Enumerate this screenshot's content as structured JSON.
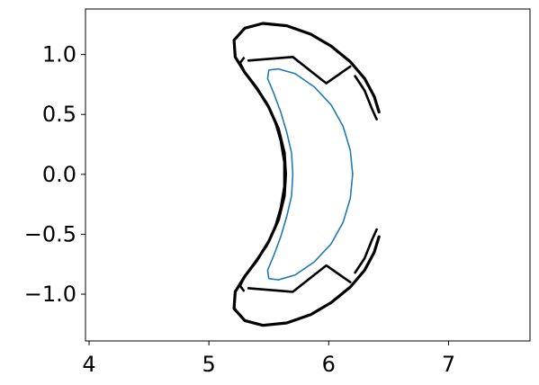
{
  "chart_data": {
    "type": "line",
    "title": "",
    "xlabel": "",
    "ylabel": "",
    "xlim": [
      3.97,
      7.68
    ],
    "ylim": [
      -1.39,
      1.38
    ],
    "grid": false,
    "x_ticks": [
      4,
      5,
      6,
      7
    ],
    "x_tick_labels": [
      "4",
      "5",
      "6",
      "7"
    ],
    "y_ticks": [
      -1.0,
      -0.5,
      0.0,
      0.5,
      1.0
    ],
    "y_tick_labels": [
      "−1.0",
      "−0.5",
      "0.0",
      "0.5",
      "1.0"
    ],
    "series": [
      {
        "kind": "outer-wall",
        "color": "#000000",
        "points": [
          [
            6.42,
            0.52
          ],
          [
            6.38,
            0.65
          ],
          [
            6.3,
            0.8
          ],
          [
            6.18,
            0.94
          ],
          [
            6.02,
            1.07
          ],
          [
            5.85,
            1.17
          ],
          [
            5.65,
            1.24
          ],
          [
            5.45,
            1.26
          ],
          [
            5.3,
            1.22
          ],
          [
            5.21,
            1.12
          ],
          [
            5.22,
            0.98
          ],
          [
            5.3,
            0.85
          ],
          [
            5.4,
            0.72
          ],
          [
            5.5,
            0.56
          ],
          [
            5.58,
            0.38
          ],
          [
            5.63,
            0.18
          ],
          [
            5.64,
            0.0
          ],
          [
            5.63,
            -0.18
          ],
          [
            5.58,
            -0.38
          ],
          [
            5.5,
            -0.56
          ],
          [
            5.4,
            -0.72
          ],
          [
            5.3,
            -0.85
          ],
          [
            5.22,
            -0.98
          ],
          [
            5.21,
            -1.12
          ],
          [
            5.3,
            -1.22
          ],
          [
            5.45,
            -1.26
          ],
          [
            5.65,
            -1.24
          ],
          [
            5.85,
            -1.17
          ],
          [
            6.02,
            -1.07
          ],
          [
            6.18,
            -0.94
          ],
          [
            6.3,
            -0.8
          ],
          [
            6.38,
            -0.65
          ],
          [
            6.42,
            -0.52
          ]
        ]
      },
      {
        "kind": "inner-wall-left",
        "color": "#000000",
        "points": [
          [
            5.29,
            0.97
          ],
          [
            5.26,
            0.93
          ],
          [
            5.3,
            0.85
          ],
          [
            5.38,
            0.74
          ],
          [
            5.48,
            0.6
          ],
          [
            5.55,
            0.45
          ],
          [
            5.6,
            0.28
          ],
          [
            5.63,
            0.1
          ],
          [
            5.63,
            0.0
          ],
          [
            5.63,
            -0.1
          ],
          [
            5.6,
            -0.28
          ],
          [
            5.55,
            -0.45
          ],
          [
            5.48,
            -0.6
          ],
          [
            5.38,
            -0.74
          ],
          [
            5.3,
            -0.85
          ],
          [
            5.26,
            -0.93
          ],
          [
            5.29,
            -0.97
          ]
        ]
      },
      {
        "kind": "upper-baffle",
        "color": "#000000",
        "points": [
          [
            5.33,
            0.95
          ],
          [
            5.7,
            0.98
          ],
          [
            5.98,
            0.76
          ],
          [
            6.18,
            0.9
          ]
        ]
      },
      {
        "kind": "lower-baffle",
        "color": "#000000",
        "points": [
          [
            5.33,
            -0.95
          ],
          [
            5.7,
            -0.98
          ],
          [
            5.98,
            -0.76
          ],
          [
            6.18,
            -0.9
          ]
        ]
      },
      {
        "kind": "upper-right-plate",
        "color": "#000000",
        "points": [
          [
            6.22,
            0.82
          ],
          [
            6.3,
            0.7
          ],
          [
            6.36,
            0.55
          ],
          [
            6.4,
            0.46
          ]
        ]
      },
      {
        "kind": "lower-right-plate",
        "color": "#000000",
        "points": [
          [
            6.22,
            -0.82
          ],
          [
            6.3,
            -0.7
          ],
          [
            6.36,
            -0.55
          ],
          [
            6.4,
            -0.46
          ]
        ]
      },
      {
        "kind": "plasma-boundary",
        "color": "#1f77b4",
        "points": [
          [
            6.2,
            0.0
          ],
          [
            6.18,
            0.2
          ],
          [
            6.12,
            0.4
          ],
          [
            6.02,
            0.58
          ],
          [
            5.88,
            0.73
          ],
          [
            5.72,
            0.84
          ],
          [
            5.58,
            0.88
          ],
          [
            5.5,
            0.87
          ],
          [
            5.49,
            0.8
          ],
          [
            5.54,
            0.68
          ],
          [
            5.6,
            0.52
          ],
          [
            5.65,
            0.35
          ],
          [
            5.69,
            0.18
          ],
          [
            5.7,
            0.0
          ],
          [
            5.69,
            -0.18
          ],
          [
            5.65,
            -0.35
          ],
          [
            5.6,
            -0.52
          ],
          [
            5.54,
            -0.68
          ],
          [
            5.49,
            -0.8
          ],
          [
            5.5,
            -0.87
          ],
          [
            5.58,
            -0.88
          ],
          [
            5.72,
            -0.84
          ],
          [
            5.88,
            -0.73
          ],
          [
            6.02,
            -0.58
          ],
          [
            6.12,
            -0.4
          ],
          [
            6.18,
            -0.2
          ],
          [
            6.2,
            0.0
          ]
        ]
      }
    ]
  }
}
